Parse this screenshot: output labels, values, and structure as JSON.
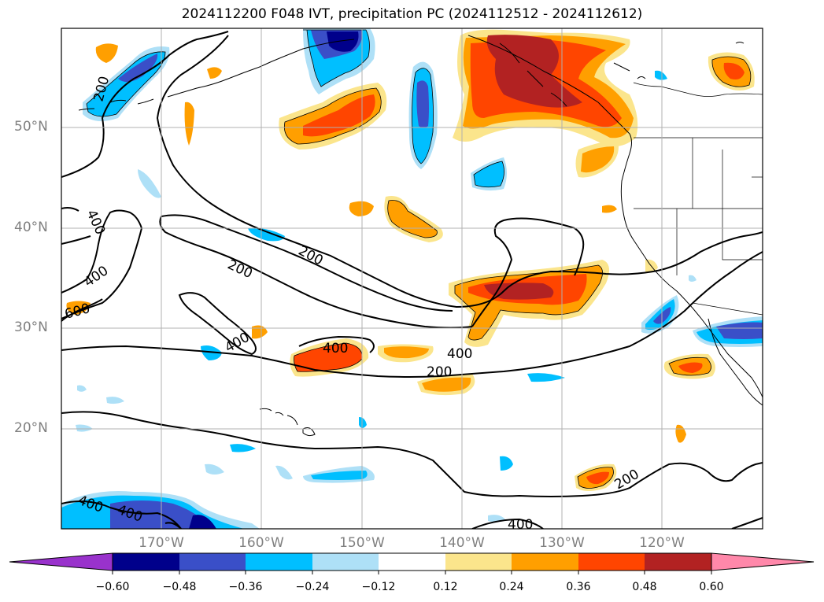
{
  "title": "2024112200 F048 IVT, precipitation PC (2024112512 - 2024112612)",
  "lat_labels": [
    "50°N",
    "40°N",
    "30°N",
    "20°N"
  ],
  "lon_labels": [
    "170°W",
    "160°W",
    "150°W",
    "140°W",
    "130°W",
    "120°W"
  ],
  "contour_labels": [
    "200",
    "200",
    "200",
    "200",
    "200",
    "400",
    "400",
    "400",
    "400",
    "400",
    "400",
    "400",
    "400",
    "600"
  ],
  "colorbar": {
    "tick_labels": [
      "−0.60",
      "−0.48",
      "−0.36",
      "−0.24",
      "−0.12",
      "0.12",
      "0.24",
      "0.36",
      "0.48",
      "0.60"
    ],
    "colors": [
      "#9932cc",
      "#00008b",
      "#3a4fc8",
      "#00bfff",
      "#aee0f7",
      "#ffffff",
      "#fbe58c",
      "#ff9f00",
      "#ff4500",
      "#b22222",
      "#ff88aa"
    ]
  }
}
